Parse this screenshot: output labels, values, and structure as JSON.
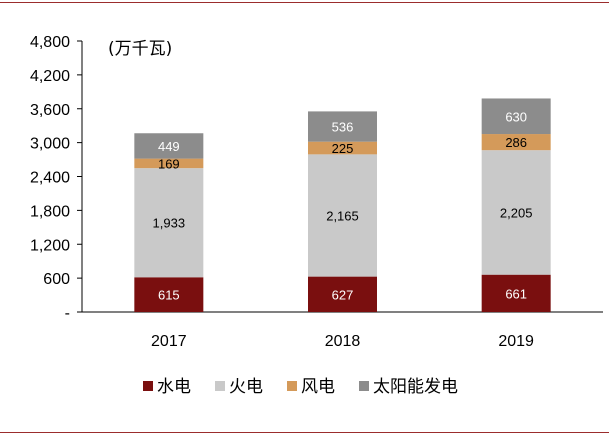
{
  "chart_data": {
    "type": "bar",
    "stacked": true,
    "unit_label": "(万千瓦)",
    "categories": [
      "2017",
      "2018",
      "2019"
    ],
    "y_ticks": [
      "4,800",
      "4,200",
      "3,600",
      "3,000",
      "2,400",
      "1,800",
      "1,200",
      "600",
      "-"
    ],
    "ylim": [
      0,
      4800
    ],
    "series": [
      {
        "name": "水电",
        "color": "#7a0f0f",
        "values": [
          615,
          627,
          661
        ],
        "labels": [
          "615",
          "627",
          "661"
        ],
        "label_color": "#ffffff"
      },
      {
        "name": "火电",
        "color": "#c9c9c9",
        "values": [
          1933,
          2165,
          2205
        ],
        "labels": [
          "1,933",
          "2,165",
          "2,205"
        ],
        "label_color": "#000000"
      },
      {
        "name": "风电",
        "color": "#d49a5a",
        "values": [
          169,
          225,
          286
        ],
        "labels": [
          "169",
          "225",
          "286"
        ],
        "label_color": "#000000"
      },
      {
        "name": "太阳能发电",
        "color": "#8c8c8c",
        "values": [
          449,
          536,
          630
        ],
        "labels": [
          "449",
          "536",
          "630"
        ],
        "label_color": "#ffffff"
      }
    ],
    "legend_position": "bottom",
    "grid": false
  }
}
